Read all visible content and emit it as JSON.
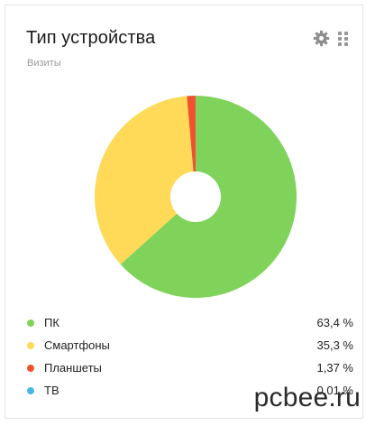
{
  "widget": {
    "title": "Тип устройства",
    "subtitle": "Визиты",
    "icons": {
      "settings": "gear-icon",
      "drag": "drag-handle-icon"
    }
  },
  "chart_data": {
    "type": "pie",
    "donut": true,
    "slices": [
      {
        "label": "ПК",
        "display": "63,4 %",
        "value": 63.4,
        "color": "#7fd35a"
      },
      {
        "label": "Смартфоны",
        "display": "35,3 %",
        "value": 35.3,
        "color": "#ffd958"
      },
      {
        "label": "Планшеты",
        "display": "1,37 %",
        "value": 1.37,
        "color": "#f0522e"
      },
      {
        "label": "ТВ",
        "display": "0,01 %",
        "value": 0.01,
        "color": "#4ab6e8"
      }
    ]
  },
  "watermark": "pcbee.ru"
}
